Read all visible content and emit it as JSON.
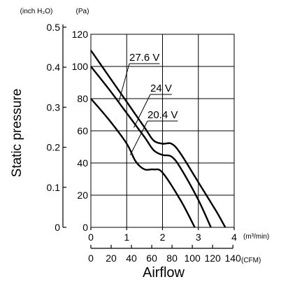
{
  "chart_data": {
    "type": "line",
    "title": "",
    "xlabel": "Airflow",
    "ylabel": "Static pressure",
    "x_units": {
      "primary": "(m³/min)",
      "secondary": "(CFM)"
    },
    "y_units": {
      "primary": "(Pa)",
      "secondary": "(inch H₂O)"
    },
    "xlim": [
      0,
      4
    ],
    "ylim": [
      0,
      120
    ],
    "grid": true,
    "x_ticks": [
      "0",
      "1",
      "2",
      "3",
      "4"
    ],
    "y_ticks": [
      "0",
      "20",
      "40",
      "60",
      "80",
      "100",
      "120"
    ],
    "y_secondary_ticks": [
      {
        "label": "0",
        "value": 0
      },
      {
        "label": "0.1",
        "value": 0.1
      },
      {
        "label": "0.2",
        "value": 0.2
      },
      {
        "label": "0.3",
        "value": 0.3
      },
      {
        "label": "0.4",
        "value": 0.4
      },
      {
        "label": "0.5",
        "value": 0.5
      }
    ],
    "x_secondary_ticks": [
      {
        "label": "0",
        "value": 0
      },
      {
        "label": "20",
        "value": 20
      },
      {
        "label": "40",
        "value": 40
      },
      {
        "label": "60",
        "value": 60
      },
      {
        "label": "80",
        "value": 80
      },
      {
        "label": "100",
        "value": 100
      },
      {
        "label": "120",
        "value": 120
      },
      {
        "label": "140",
        "value": 140
      }
    ],
    "series": [
      {
        "name": "27.6 V",
        "label_anchor": {
          "x": 0.78,
          "y": 78
        },
        "points": [
          [
            0,
            110
          ],
          [
            0.5,
            94
          ],
          [
            1,
            78
          ],
          [
            1.5,
            62
          ],
          [
            1.75,
            54
          ],
          [
            2,
            52
          ],
          [
            2.25,
            52
          ],
          [
            2.5,
            46
          ],
          [
            3,
            28
          ],
          [
            3.5,
            10
          ],
          [
            3.75,
            0
          ]
        ]
      },
      {
        "name": "24 V",
        "label_anchor": {
          "x": 1.2,
          "y": 62
        },
        "points": [
          [
            0,
            100
          ],
          [
            0.5,
            86
          ],
          [
            1,
            71
          ],
          [
            1.5,
            56
          ],
          [
            1.75,
            48
          ],
          [
            2,
            45
          ],
          [
            2.25,
            44
          ],
          [
            2.5,
            37
          ],
          [
            3,
            17
          ],
          [
            3.35,
            0
          ]
        ]
      },
      {
        "name": "20.4 V",
        "label_anchor": {
          "x": 1.1,
          "y": 45
        },
        "points": [
          [
            0,
            80
          ],
          [
            0.5,
            67
          ],
          [
            1,
            52
          ],
          [
            1.25,
            41
          ],
          [
            1.5,
            36
          ],
          [
            1.75,
            36
          ],
          [
            2,
            34
          ],
          [
            2.5,
            17
          ],
          [
            2.9,
            0
          ]
        ]
      }
    ]
  }
}
